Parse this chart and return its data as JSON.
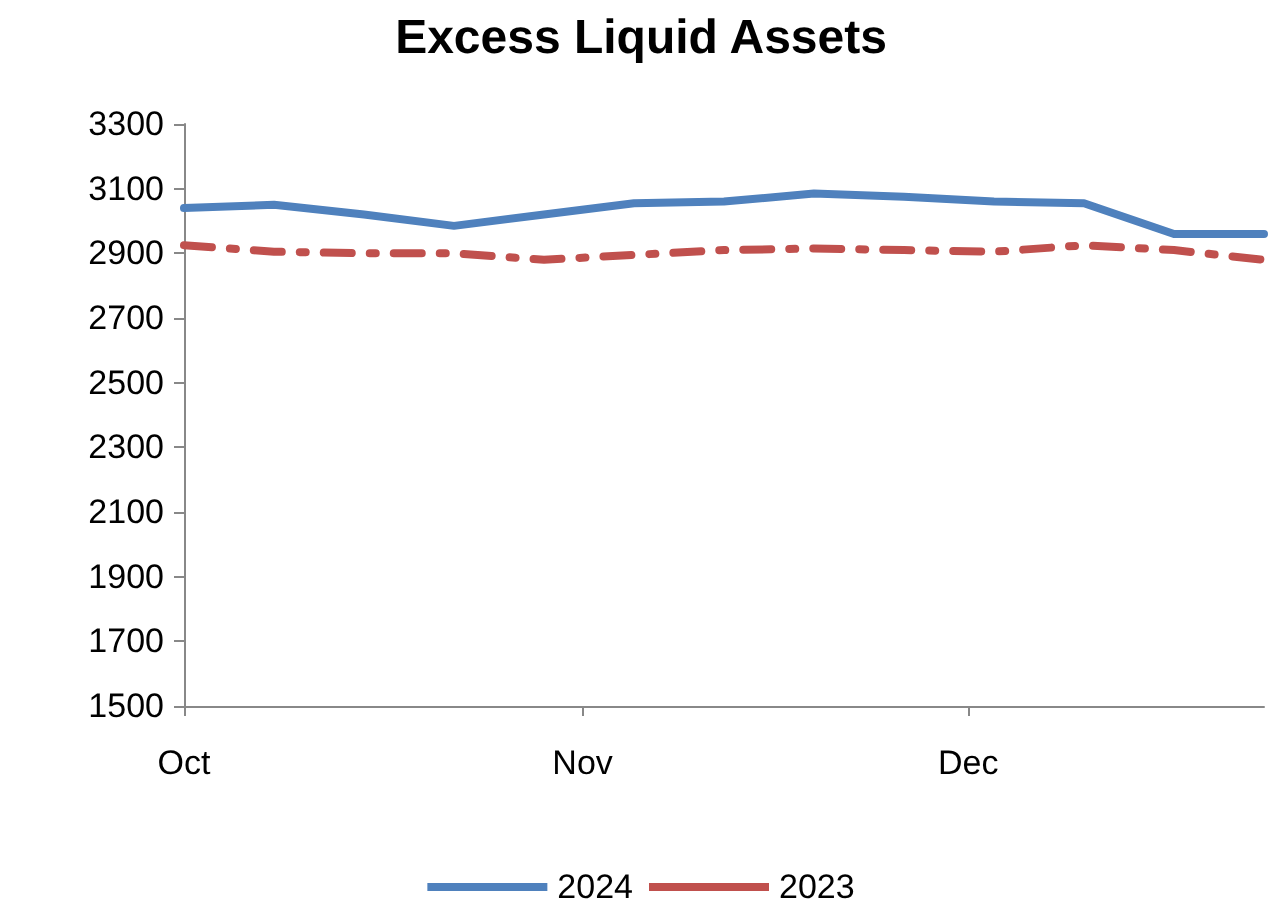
{
  "chart_data": {
    "type": "line",
    "title": "Excess Liquid Assets",
    "x": [
      "--10-01",
      "--10-08",
      "--10-15",
      "--10-22",
      "--10-29",
      "--11-05",
      "--11-12",
      "--11-19",
      "--11-26",
      "--12-03",
      "--12-10",
      "--12-17",
      "--12-24"
    ],
    "xlim": [
      "--10-01",
      "--12-24"
    ],
    "xticks": [
      {
        "value": "--10-01",
        "label": "Oct"
      },
      {
        "value": "--11-01",
        "label": "Nov"
      },
      {
        "value": "--12-01",
        "label": "Dec"
      }
    ],
    "ylim": [
      1500,
      3300
    ],
    "yticks": [
      1500,
      1700,
      1900,
      2100,
      2300,
      2500,
      2700,
      2900,
      3100,
      3300
    ],
    "series": [
      {
        "name": "2024",
        "color": "#4f81bd",
        "line_style": "solid",
        "values": [
          3040,
          3050,
          3020,
          2985,
          3020,
          3055,
          3060,
          3085,
          3075,
          3060,
          3055,
          2960,
          2960
        ]
      },
      {
        "name": "2023",
        "color": "#c0504d",
        "line_style": "dashed",
        "values": [
          2925,
          2905,
          2900,
          2900,
          2880,
          2895,
          2910,
          2915,
          2910,
          2905,
          2925,
          2910,
          2880
        ]
      }
    ],
    "grid": false,
    "legend": "bottom",
    "marker": "none"
  }
}
